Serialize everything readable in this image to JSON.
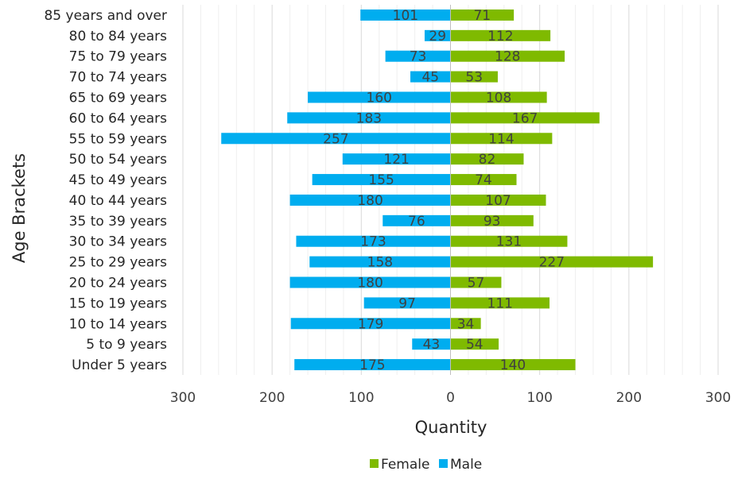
{
  "chart_data": {
    "type": "bar",
    "orientation": "horizontal",
    "layout": "population-pyramid",
    "categories": [
      "85 years and over",
      "80 to 84 years",
      "75 to 79 years",
      "70 to 74 years",
      "65 to 69 years",
      "60 to 64 years",
      "55 to 59 years",
      "50 to 54 years",
      "45 to 49 years",
      "40 to 44 years",
      "35 to 39 years",
      "30 to 34 years",
      "25 to 29 years",
      "20 to 24 years",
      "15 to 19 years",
      "10 to 14 years",
      "5 to 9 years",
      "Under 5 years"
    ],
    "series": [
      {
        "name": "Female",
        "color": "#7fba00",
        "values": [
          71,
          112,
          128,
          53,
          108,
          167,
          114,
          82,
          74,
          107,
          93,
          131,
          227,
          57,
          111,
          34,
          54,
          140
        ]
      },
      {
        "name": "Male",
        "color": "#00adef",
        "values": [
          101,
          29,
          73,
          45,
          160,
          183,
          257,
          121,
          155,
          180,
          76,
          173,
          158,
          180,
          97,
          179,
          43,
          175
        ]
      }
    ],
    "xlabel": "Quantity",
    "ylabel": "Age Brackets",
    "xlim": [
      -300,
      300
    ],
    "x_ticks": [
      -300,
      -200,
      -100,
      0,
      100,
      200,
      300
    ],
    "x_tick_labels": [
      "300",
      "200",
      "100",
      "0",
      "100",
      "200",
      "300"
    ],
    "grid": true,
    "legend_position": "bottom",
    "data_labels": true
  }
}
